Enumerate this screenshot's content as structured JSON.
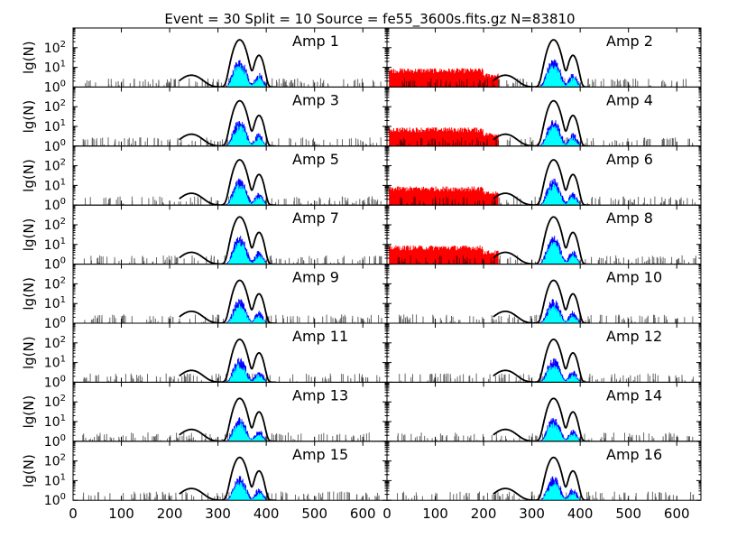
{
  "chart_data": {
    "type": "line",
    "title": "Event = 30 Split = 10 Source = fe55_3600s.fits.gz N=83810",
    "ylabel": "lg(N)",
    "xlabel": "",
    "y_scale": "log",
    "ylim": [
      1,
      1000
    ],
    "xlim": [
      0,
      650
    ],
    "x_ticks": [
      0,
      100,
      200,
      300,
      400,
      500,
      600
    ],
    "x_tick_labels": [
      "0",
      "100",
      "200",
      "300",
      "400",
      "500",
      "600"
    ],
    "y_ticks": [
      1,
      10,
      100
    ],
    "y_tick_labels": [
      {
        "base": "10",
        "exp": "0"
      },
      {
        "base": "10",
        "exp": "1"
      },
      {
        "base": "10",
        "exp": "2"
      }
    ],
    "grid": false,
    "layout": {
      "rows": 8,
      "cols": 2
    },
    "series_colors": {
      "main": "#000000",
      "secondary_1": "#0000ff",
      "secondary_2": "#ff00ff",
      "secondary_3": "#00ffff",
      "noise": "#ff0000"
    },
    "peaks": {
      "x": [
        345,
        385
      ],
      "y": [
        250,
        40
      ]
    },
    "panels": [
      {
        "label": "Amp 1",
        "peak_main": 250,
        "peak_k_beta": 40,
        "red_noise": false
      },
      {
        "label": "Amp 2",
        "peak_main": 250,
        "peak_k_beta": 40,
        "red_noise": true
      },
      {
        "label": "Amp 3",
        "peak_main": 200,
        "peak_k_beta": 35,
        "red_noise": false
      },
      {
        "label": "Amp 4",
        "peak_main": 200,
        "peak_k_beta": 35,
        "red_noise": true
      },
      {
        "label": "Amp 5",
        "peak_main": 200,
        "peak_k_beta": 35,
        "red_noise": false
      },
      {
        "label": "Amp 6",
        "peak_main": 200,
        "peak_k_beta": 35,
        "red_noise": true
      },
      {
        "label": "Amp 7",
        "peak_main": 250,
        "peak_k_beta": 40,
        "red_noise": false
      },
      {
        "label": "Amp 8",
        "peak_main": 250,
        "peak_k_beta": 40,
        "red_noise": true
      },
      {
        "label": "Amp 9",
        "peak_main": 150,
        "peak_k_beta": 30,
        "red_noise": false
      },
      {
        "label": "Amp 10",
        "peak_main": 150,
        "peak_k_beta": 30,
        "red_noise": false
      },
      {
        "label": "Amp 11",
        "peak_main": 150,
        "peak_k_beta": 30,
        "red_noise": false
      },
      {
        "label": "Amp 12",
        "peak_main": 150,
        "peak_k_beta": 30,
        "red_noise": false
      },
      {
        "label": "Amp 13",
        "peak_main": 150,
        "peak_k_beta": 30,
        "red_noise": false
      },
      {
        "label": "Amp 14",
        "peak_main": 150,
        "peak_k_beta": 30,
        "red_noise": false
      },
      {
        "label": "Amp 15",
        "peak_main": 150,
        "peak_k_beta": 30,
        "red_noise": false
      },
      {
        "label": "Amp 16",
        "peak_main": 150,
        "peak_k_beta": 30,
        "red_noise": false
      }
    ]
  }
}
